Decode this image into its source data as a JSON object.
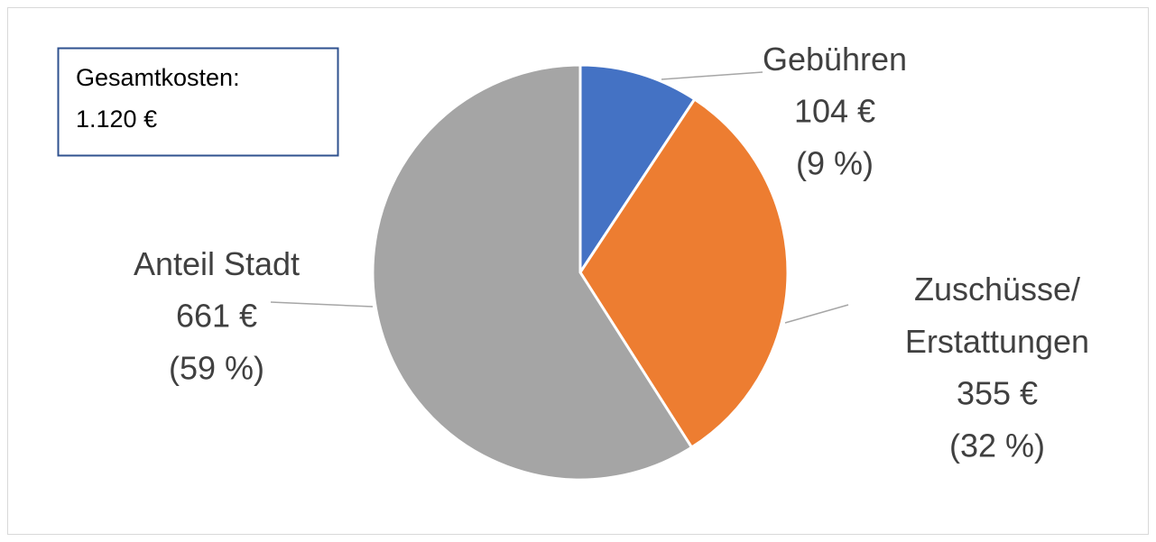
{
  "chart_data": {
    "type": "pie",
    "categories": [
      "Gebühren",
      "Zuschüsse/Erstattungen",
      "Anteil Stadt"
    ],
    "values": [
      104,
      355,
      661
    ],
    "value_labels": [
      "104 €",
      "355 €",
      "661 €"
    ],
    "percent_labels": [
      "(9 %)",
      "(32 %)",
      "(59 %)"
    ],
    "colors": [
      "#4472c4",
      "#ed7d31",
      "#a5a5a5"
    ],
    "annotation": [
      "Gesamtkosten:",
      "1.120 €"
    ]
  }
}
